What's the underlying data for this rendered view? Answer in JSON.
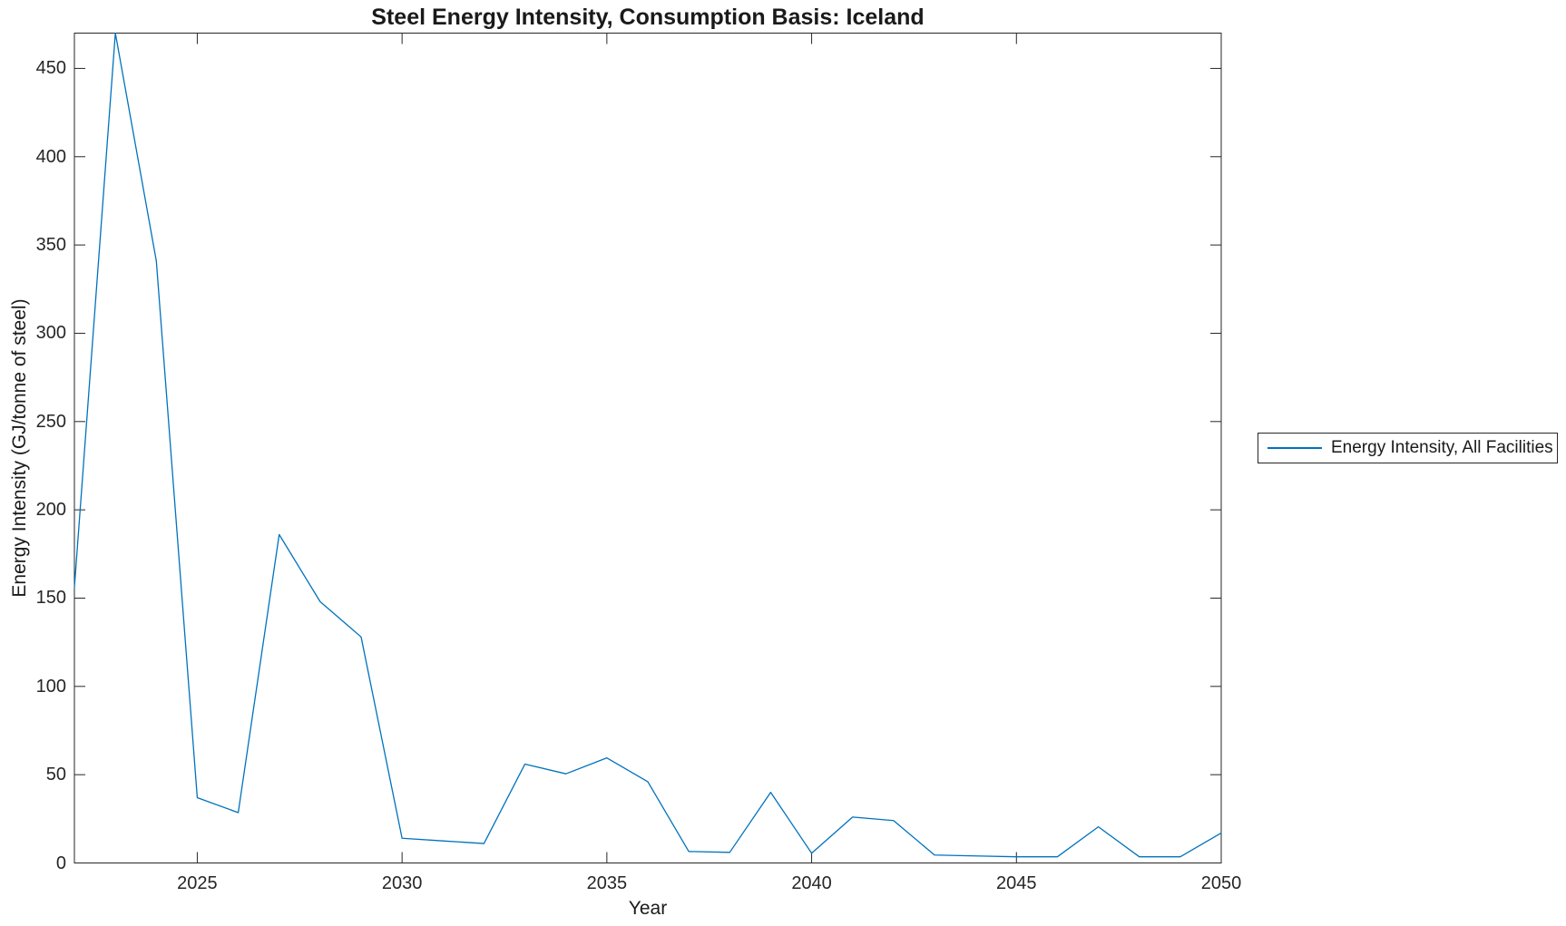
{
  "chart_data": {
    "type": "line",
    "title": "Steel Energy Intensity, Consumption Basis: Iceland",
    "xlabel": "Year",
    "ylabel": "Energy Intensity (GJ/tonne of steel)",
    "xlim": [
      2022,
      2050
    ],
    "ylim": [
      0,
      470
    ],
    "xticks": [
      2025,
      2030,
      2035,
      2040,
      2045,
      2050
    ],
    "yticks": [
      0,
      50,
      100,
      150,
      200,
      250,
      300,
      350,
      400,
      450
    ],
    "grid": false,
    "legend": {
      "position": "right-outside",
      "entries": [
        "Energy Intensity, All Facilities"
      ]
    },
    "colors": {
      "line": "#0072BD",
      "axes": "#262626",
      "text": "#1a1a1a"
    },
    "series": [
      {
        "name": "Energy Intensity, All Facilities",
        "color": "#0072BD",
        "x": [
          2022,
          2023,
          2024,
          2025,
          2026,
          2027,
          2028,
          2029,
          2030,
          2031,
          2032,
          2033,
          2034,
          2035,
          2036,
          2037,
          2038,
          2039,
          2040,
          2041,
          2042,
          2043,
          2044,
          2045,
          2046,
          2047,
          2048,
          2049,
          2050
        ],
        "y": [
          156,
          470,
          341,
          37,
          28.5,
          186,
          148,
          128,
          14,
          12.5,
          11,
          56,
          50.5,
          59.5,
          46,
          6.5,
          6,
          40,
          5.5,
          26,
          24,
          4.5,
          4,
          3.5,
          3.5,
          20.5,
          3.5,
          3.5,
          17
        ]
      }
    ]
  }
}
